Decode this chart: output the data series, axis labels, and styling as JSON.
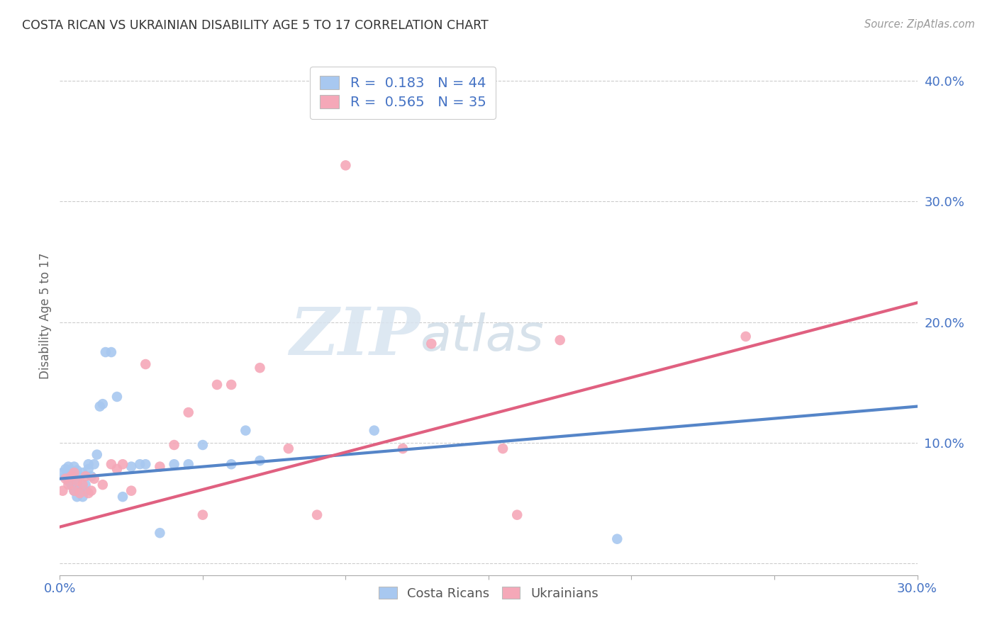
{
  "title": "COSTA RICAN VS UKRAINIAN DISABILITY AGE 5 TO 17 CORRELATION CHART",
  "source": "Source: ZipAtlas.com",
  "ylabel": "Disability Age 5 to 17",
  "xlim": [
    0.0,
    0.3
  ],
  "ylim": [
    -0.01,
    0.42
  ],
  "xticks": [
    0.0,
    0.05,
    0.1,
    0.15,
    0.2,
    0.25,
    0.3
  ],
  "xticklabels": [
    "0.0%",
    "",
    "",
    "",
    "",
    "",
    "30.0%"
  ],
  "yticks": [
    0.0,
    0.1,
    0.2,
    0.3,
    0.4
  ],
  "yticklabels": [
    "",
    "10.0%",
    "20.0%",
    "30.0%",
    "40.0%"
  ],
  "blue_color": "#A8C8F0",
  "pink_color": "#F5A8B8",
  "blue_line_color": "#5585C8",
  "pink_line_color": "#E06080",
  "watermark_zip": "ZIP",
  "watermark_atlas": "atlas",
  "costa_ricans_x": [
    0.001,
    0.002,
    0.002,
    0.003,
    0.003,
    0.003,
    0.004,
    0.004,
    0.004,
    0.005,
    0.005,
    0.005,
    0.006,
    0.006,
    0.006,
    0.007,
    0.007,
    0.008,
    0.008,
    0.009,
    0.009,
    0.01,
    0.01,
    0.011,
    0.012,
    0.013,
    0.014,
    0.015,
    0.016,
    0.018,
    0.02,
    0.022,
    0.025,
    0.028,
    0.03,
    0.035,
    0.04,
    0.045,
    0.05,
    0.06,
    0.065,
    0.07,
    0.11,
    0.195
  ],
  "costa_ricans_y": [
    0.075,
    0.072,
    0.078,
    0.068,
    0.075,
    0.08,
    0.065,
    0.07,
    0.076,
    0.06,
    0.072,
    0.08,
    0.055,
    0.065,
    0.077,
    0.06,
    0.072,
    0.055,
    0.075,
    0.06,
    0.065,
    0.078,
    0.082,
    0.072,
    0.082,
    0.09,
    0.13,
    0.132,
    0.175,
    0.175,
    0.138,
    0.055,
    0.08,
    0.082,
    0.082,
    0.025,
    0.082,
    0.082,
    0.098,
    0.082,
    0.11,
    0.085,
    0.11,
    0.02
  ],
  "ukrainians_x": [
    0.001,
    0.002,
    0.003,
    0.004,
    0.005,
    0.005,
    0.006,
    0.007,
    0.008,
    0.009,
    0.01,
    0.011,
    0.012,
    0.015,
    0.018,
    0.02,
    0.022,
    0.025,
    0.03,
    0.035,
    0.04,
    0.045,
    0.05,
    0.055,
    0.06,
    0.07,
    0.08,
    0.09,
    0.1,
    0.12,
    0.13,
    0.155,
    0.16,
    0.175,
    0.24
  ],
  "ukrainians_y": [
    0.06,
    0.07,
    0.065,
    0.072,
    0.06,
    0.075,
    0.068,
    0.058,
    0.065,
    0.072,
    0.058,
    0.06,
    0.07,
    0.065,
    0.082,
    0.078,
    0.082,
    0.06,
    0.165,
    0.08,
    0.098,
    0.125,
    0.04,
    0.148,
    0.148,
    0.162,
    0.095,
    0.04,
    0.33,
    0.095,
    0.182,
    0.095,
    0.04,
    0.185,
    0.188
  ],
  "blue_intercept": 0.07,
  "blue_slope": 0.2,
  "pink_intercept": 0.03,
  "pink_slope": 0.62,
  "bg_color": "#FFFFFF",
  "grid_color": "#CCCCCC"
}
